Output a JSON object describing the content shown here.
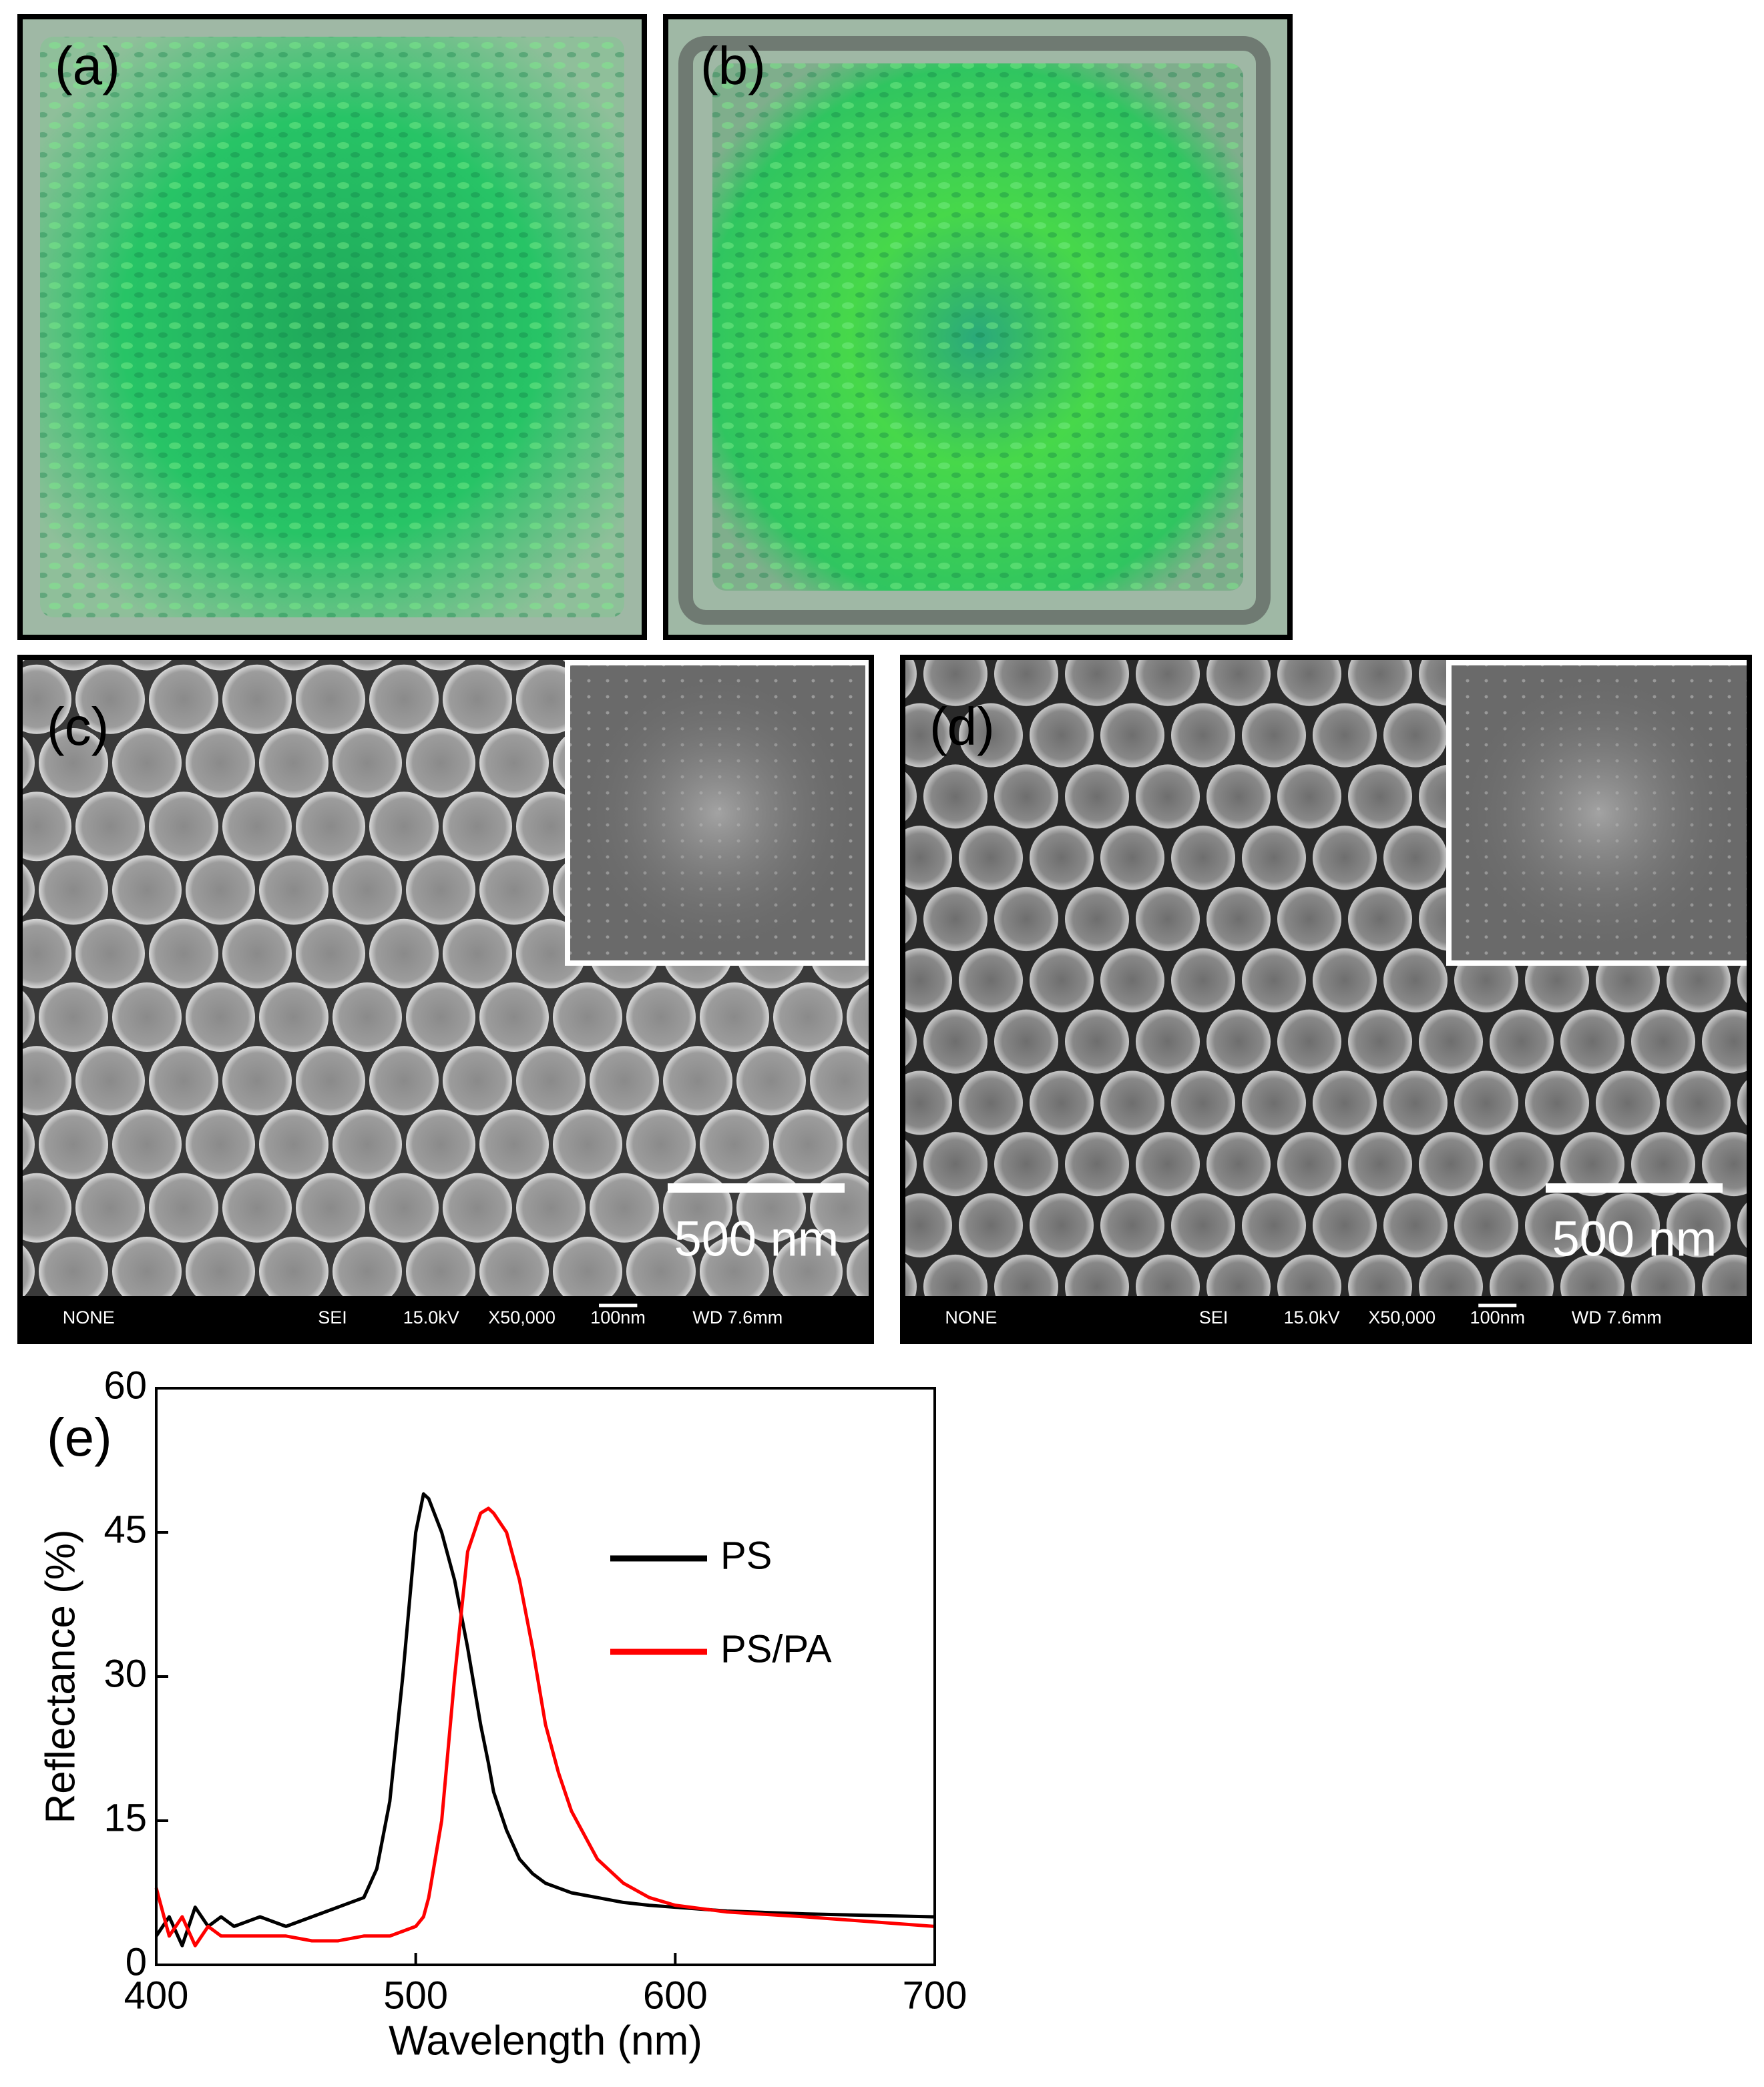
{
  "panels": [
    {
      "label": "(a)"
    },
    {
      "label": "(b)"
    },
    {
      "label": "(c)",
      "scale_bar": "500 nm",
      "info_bar": [
        "NONE",
        "SEI",
        "15.0kV",
        "X50,000",
        "100nm",
        "WD 7.6mm"
      ]
    },
    {
      "label": "(d)",
      "scale_bar": "500 nm",
      "info_bar": [
        "NONE",
        "SEI",
        "15.0kV",
        "X50,000",
        "100nm",
        "WD 7.6mm"
      ]
    }
  ],
  "chart_data": {
    "type": "line",
    "label": "(e)",
    "x_label": "Wavelength (nm)",
    "y_label": "Reflectance (%)",
    "x": [
      400,
      405,
      410,
      415,
      420,
      425,
      430,
      440,
      450,
      460,
      470,
      480,
      485,
      490,
      495,
      500,
      503,
      505,
      510,
      515,
      520,
      525,
      528,
      530,
      535,
      540,
      545,
      550,
      555,
      560,
      570,
      580,
      590,
      600,
      620,
      650,
      700
    ],
    "series": [
      {
        "name": "PS",
        "color": "#000000",
        "values": [
          3,
          5,
          2,
          6,
          4,
          5,
          4,
          5,
          4,
          5,
          6,
          7,
          10,
          17,
          30,
          45,
          49,
          48.5,
          45,
          40,
          33,
          25,
          21,
          18,
          14,
          11,
          9.5,
          8.5,
          8,
          7.5,
          7,
          6.5,
          6.2,
          6,
          5.6,
          5.3,
          5
        ]
      },
      {
        "name": "PS/PA",
        "color": "#ff0000",
        "values": [
          8,
          3,
          5,
          2,
          4,
          3,
          3,
          3,
          3,
          2.5,
          2.5,
          3,
          3,
          3,
          3.5,
          4,
          5,
          7,
          15,
          30,
          43,
          47,
          47.5,
          47,
          45,
          40,
          33,
          25,
          20,
          16,
          11,
          8.5,
          7,
          6.2,
          5.5,
          5,
          4
        ]
      }
    ],
    "xlim": [
      400,
      700
    ],
    "xticks": [
      400,
      500,
      600,
      700
    ],
    "ylim": [
      0,
      60
    ],
    "yticks": [
      0,
      15,
      30,
      45,
      60
    ],
    "legend": "upper right"
  }
}
